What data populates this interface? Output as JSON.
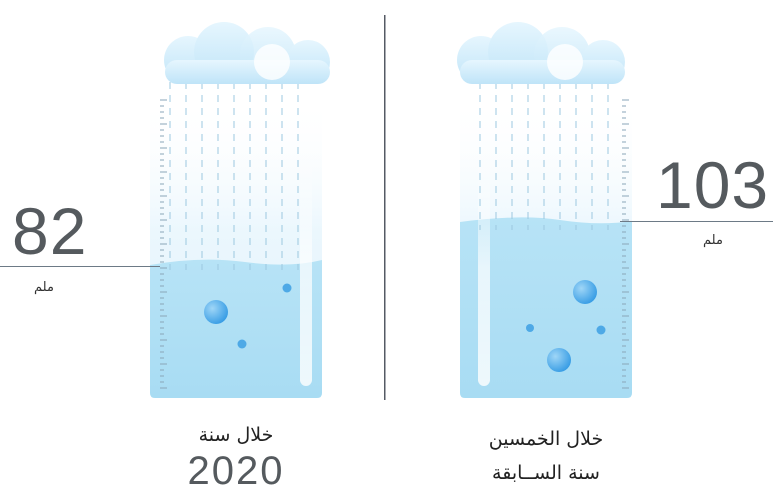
{
  "panels": [
    {
      "id": "past-50-years",
      "value": "103",
      "unit": "ملم",
      "caption_line1": "خلال الخمسين",
      "caption_line2": "سنة الســابقة",
      "fill_level": 0.56
    },
    {
      "id": "year-2020",
      "value": "82",
      "unit": "ملم",
      "caption_line1": "خلال سنة",
      "caption_line2": "2020",
      "fill_level": 0.45
    }
  ],
  "colors": {
    "water": "#aee0f5",
    "glass_top": "#f4fbff",
    "drop": "#3fa5e8",
    "cloud": "#c9e9fb",
    "text": "#555a5e"
  }
}
